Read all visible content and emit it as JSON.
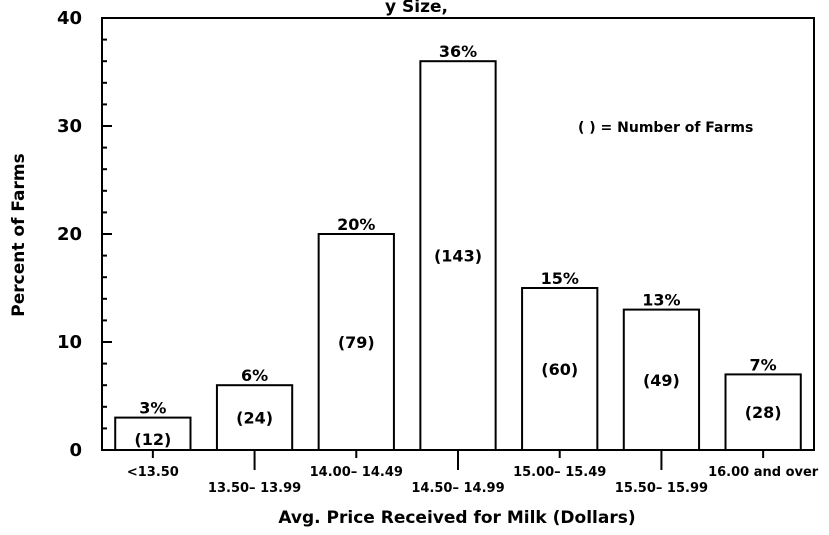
{
  "chart_data": {
    "type": "bar",
    "title": "",
    "xlabel": "Avg. Price Received for Milk (Dollars)",
    "ylabel": "Percent of Farms",
    "ylim": [
      0,
      40
    ],
    "yticks": [
      "0",
      "10",
      "20",
      "30",
      "40"
    ],
    "categories": [
      "<13.50",
      "13.50– 13.99",
      "14.00– 14.49",
      "14.50– 14.99",
      "15.00– 15.49",
      "15.50– 15.99",
      "16.00 and over"
    ],
    "values": [
      3,
      6,
      20,
      36,
      15,
      13,
      7
    ],
    "value_labels": [
      "3%",
      "6%",
      "20%",
      "36%",
      "15%",
      "13%",
      "7%"
    ],
    "counts": [
      "(12)",
      "(24)",
      "(79)",
      "(143)",
      "(60)",
      "(49)",
      "(28)"
    ],
    "annotation": "( ) = Number of Farms",
    "grid": false,
    "legend": "none"
  },
  "partial_title_text": "y Size, "
}
